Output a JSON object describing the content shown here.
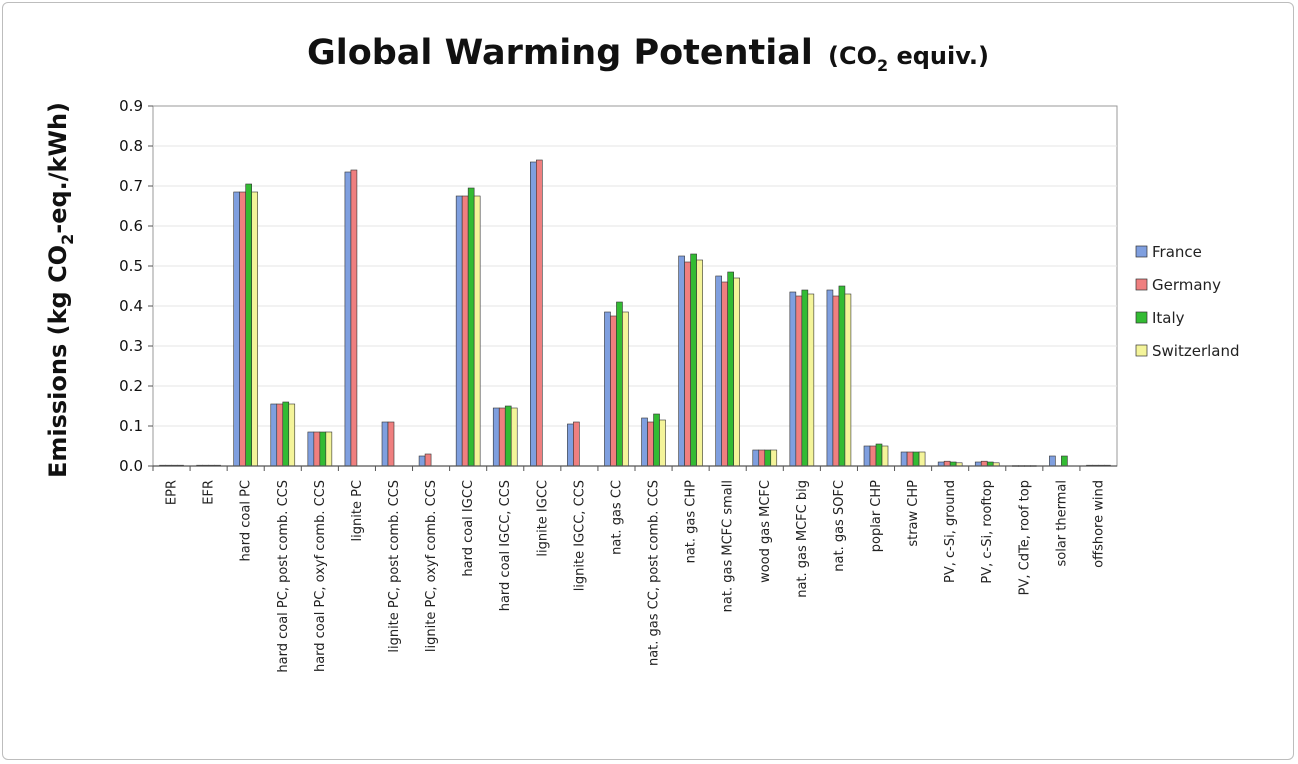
{
  "chart_data": {
    "type": "bar",
    "title": "Global Warming Potential",
    "title_suffix": {
      "pre": "(CO",
      "sub": "2",
      "post": " equiv.)"
    },
    "ylabel": {
      "pre": "Emissions (kg CO",
      "sub": "2",
      "post": "-eq./kWh)"
    },
    "xlabel": "",
    "ylim": [
      0,
      0.9
    ],
    "yticks": [
      "0.0",
      "0.1",
      "0.2",
      "0.3",
      "0.4",
      "0.5",
      "0.6",
      "0.7",
      "0.8",
      "0.9"
    ],
    "grid": true,
    "legend_position": "right",
    "categories": [
      "EPR",
      "EFR",
      "hard coal PC",
      "hard coal PC, post comb. CCS",
      "hard coal PC, oxyf comb. CCS",
      "lignite PC",
      "lignite PC, post comb. CCS",
      "lignite PC, oxyf comb. CCS",
      "hard coal IGCC",
      "hard coal IGCC, CCS",
      "lignite IGCC",
      "lignite IGCC, CCS",
      "nat. gas CC",
      "nat. gas CC, post comb. CCS",
      "nat. gas CHP",
      "nat. gas MCFC small",
      "wood gas MCFC",
      "nat. gas MCFC big",
      "nat. gas SOFC",
      "poplar CHP",
      "straw CHP",
      "PV, c-Si, ground",
      "PV, c-Si, rooftop",
      "PV, CdTe, roof top",
      "solar thermal",
      "offshore wind"
    ],
    "series": [
      {
        "name": "France",
        "color": "#7f9fdf",
        "values": [
          0.002,
          0.002,
          0.685,
          0.155,
          0.085,
          0.735,
          0.11,
          0.025,
          0.675,
          0.145,
          0.76,
          0.105,
          0.385,
          0.12,
          0.525,
          0.475,
          0.04,
          0.435,
          0.44,
          0.05,
          0.035,
          0.01,
          0.01,
          0.001,
          0.025,
          0.002
        ]
      },
      {
        "name": "Germany",
        "color": "#ef7f7f",
        "values": [
          0.002,
          0.002,
          0.685,
          0.155,
          0.085,
          0.74,
          0.11,
          0.03,
          0.675,
          0.145,
          0.765,
          0.11,
          0.375,
          0.11,
          0.51,
          0.46,
          0.04,
          0.425,
          0.425,
          0.05,
          0.035,
          0.012,
          0.012,
          0.001,
          0.0,
          0.002
        ]
      },
      {
        "name": "Italy",
        "color": "#33bb33",
        "values": [
          0.002,
          0.002,
          0.705,
          0.16,
          0.085,
          0.0,
          0.0,
          0.0,
          0.695,
          0.15,
          0.0,
          0.0,
          0.41,
          0.13,
          0.53,
          0.485,
          0.04,
          0.44,
          0.45,
          0.055,
          0.035,
          0.01,
          0.01,
          0.001,
          0.025,
          0.002
        ]
      },
      {
        "name": "Switzerland",
        "color": "#f4f49a",
        "values": [
          0.002,
          0.002,
          0.685,
          0.155,
          0.085,
          0.0,
          0.0,
          0.0,
          0.675,
          0.145,
          0.0,
          0.0,
          0.385,
          0.115,
          0.515,
          0.47,
          0.04,
          0.43,
          0.43,
          0.05,
          0.035,
          0.008,
          0.008,
          0.001,
          0.0,
          0.002
        ]
      }
    ]
  }
}
